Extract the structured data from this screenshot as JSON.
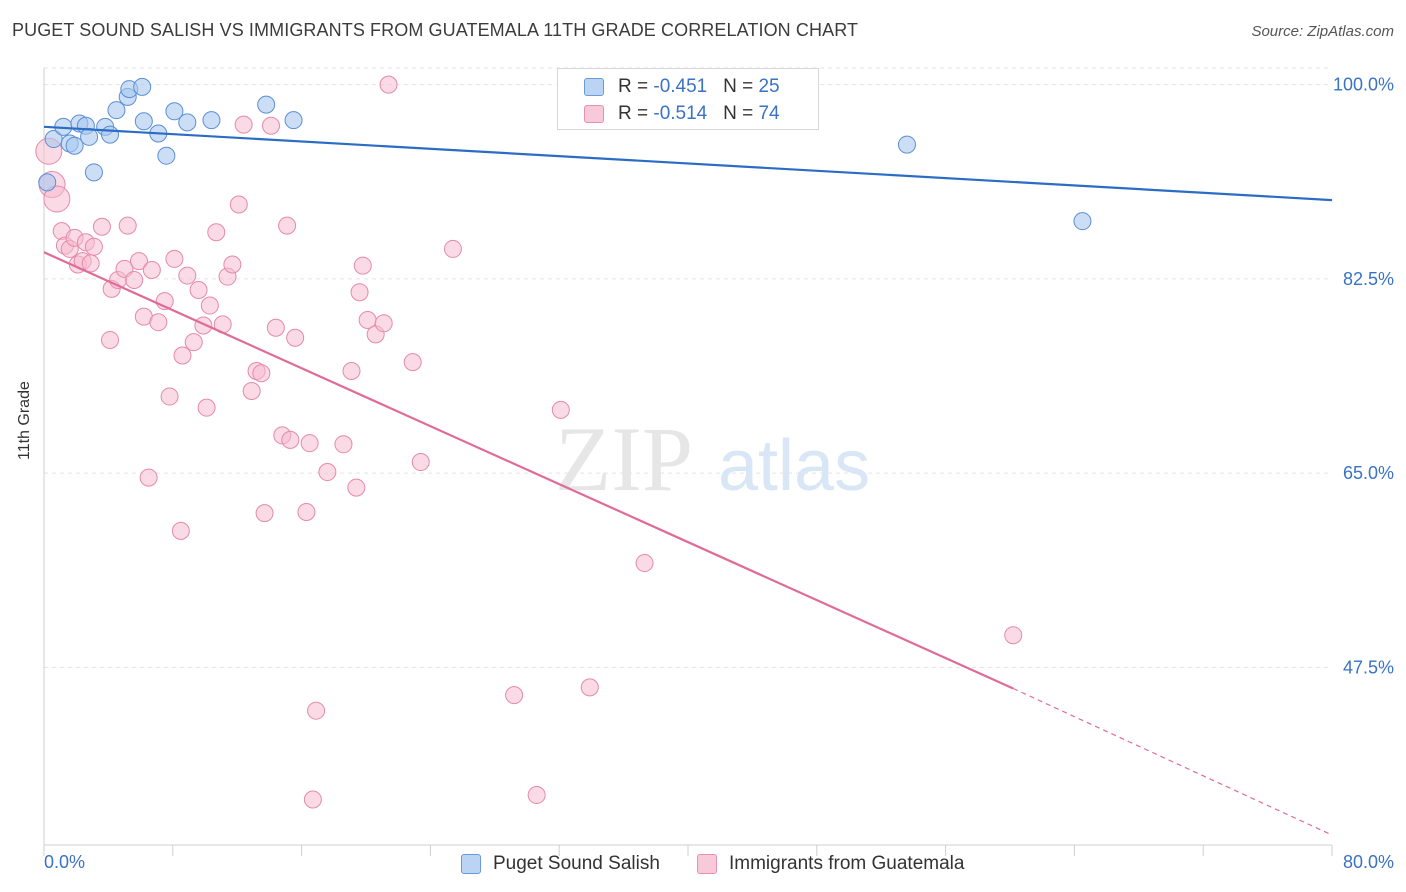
{
  "header": {
    "title": "PUGET SOUND SALISH VS IMMIGRANTS FROM GUATEMALA 11TH GRADE CORRELATION CHART",
    "source": "Source: ZipAtlas.com"
  },
  "watermark": {
    "part1": "ZIP",
    "part2": "atlas"
  },
  "legend": {
    "series1": {
      "r_label": "R = ",
      "r_value": "-0.451",
      "n_label": "N = ",
      "n_value": "25"
    },
    "series2": {
      "r_label": "R = ",
      "r_value": "-0.514",
      "n_label": "N = ",
      "n_value": "74"
    }
  },
  "colors": {
    "blue_fill": "#a9c8ef",
    "blue_stroke": "#5b8fd6",
    "blue_line": "#2b6cc4",
    "pink_fill": "#f6bcd0",
    "pink_stroke": "#e58aaa",
    "pink_line": "#e06b97",
    "tick_label": "#3a72c4"
  },
  "chart_data": {
    "type": "scatter",
    "title": "PUGET SOUND SALISH VS IMMIGRANTS FROM GUATEMALA 11TH GRADE CORRELATION CHART",
    "xlabel": "",
    "ylabel": "11th Grade",
    "xlim": [
      0,
      80
    ],
    "ylim": [
      31.5,
      101.5
    ],
    "x_tick_labels": [
      "0.0%",
      "80.0%"
    ],
    "y_ticks": [
      100,
      82.5,
      65,
      47.5
    ],
    "y_tick_labels": [
      "100.0%",
      "82.5%",
      "65.0%",
      "47.5%"
    ],
    "series": [
      {
        "name": "Puget Sound Salish",
        "r": -0.451,
        "n": 25,
        "trend": {
          "x0": 0,
          "y0": 96.2,
          "x1": 80,
          "y1": 89.6
        },
        "points": [
          [
            0.2,
            91.2
          ],
          [
            0.6,
            95.1
          ],
          [
            1.2,
            96.2
          ],
          [
            1.6,
            94.7
          ],
          [
            1.9,
            94.5
          ],
          [
            2.2,
            96.5
          ],
          [
            2.6,
            96.3
          ],
          [
            2.8,
            95.3
          ],
          [
            3.1,
            92.1
          ],
          [
            3.8,
            96.2
          ],
          [
            4.1,
            95.5
          ],
          [
            4.5,
            97.7
          ],
          [
            5.2,
            98.9
          ],
          [
            5.3,
            99.6
          ],
          [
            6.1,
            99.8
          ],
          [
            6.2,
            96.7
          ],
          [
            7.1,
            95.6
          ],
          [
            7.6,
            93.6
          ],
          [
            8.1,
            97.6
          ],
          [
            8.9,
            96.6
          ],
          [
            10.4,
            96.8
          ],
          [
            13.8,
            98.2
          ],
          [
            15.5,
            96.8
          ],
          [
            53.6,
            94.6
          ],
          [
            64.5,
            87.7
          ]
        ]
      },
      {
        "name": "Immigrants from Guatemala",
        "r": -0.514,
        "n": 74,
        "trend": {
          "x0": 0,
          "y0": 84.9,
          "x1": 60.2,
          "y1": 45.6,
          "dash_x1": 80,
          "dash_y1": 32.4
        },
        "points": [
          [
            0.3,
            94.0
          ],
          [
            0.5,
            91.0
          ],
          [
            0.8,
            89.7
          ],
          [
            1.1,
            86.8
          ],
          [
            1.3,
            85.5
          ],
          [
            1.6,
            85.2
          ],
          [
            1.9,
            86.2
          ],
          [
            2.1,
            83.8
          ],
          [
            2.4,
            84.1
          ],
          [
            2.6,
            85.8
          ],
          [
            2.9,
            83.9
          ],
          [
            3.1,
            85.4
          ],
          [
            3.6,
            87.2
          ],
          [
            4.1,
            77.0
          ],
          [
            4.2,
            81.6
          ],
          [
            4.6,
            82.4
          ],
          [
            5.0,
            83.4
          ],
          [
            5.2,
            87.3
          ],
          [
            5.6,
            82.4
          ],
          [
            5.9,
            84.1
          ],
          [
            6.2,
            79.1
          ],
          [
            6.5,
            64.6
          ],
          [
            6.7,
            83.3
          ],
          [
            7.1,
            78.6
          ],
          [
            7.5,
            80.5
          ],
          [
            7.8,
            71.9
          ],
          [
            8.1,
            84.3
          ],
          [
            8.5,
            59.8
          ],
          [
            8.6,
            75.6
          ],
          [
            8.9,
            82.8
          ],
          [
            9.3,
            76.8
          ],
          [
            9.6,
            81.5
          ],
          [
            9.9,
            78.3
          ],
          [
            10.1,
            70.9
          ],
          [
            10.3,
            80.1
          ],
          [
            10.7,
            86.7
          ],
          [
            11.1,
            78.4
          ],
          [
            11.4,
            82.7
          ],
          [
            11.7,
            83.8
          ],
          [
            12.1,
            89.2
          ],
          [
            12.4,
            96.4
          ],
          [
            12.9,
            72.4
          ],
          [
            13.2,
            74.2
          ],
          [
            13.5,
            74.0
          ],
          [
            13.7,
            61.4
          ],
          [
            14.1,
            96.3
          ],
          [
            14.4,
            78.1
          ],
          [
            14.8,
            68.4
          ],
          [
            15.1,
            87.3
          ],
          [
            15.3,
            68.0
          ],
          [
            15.6,
            77.2
          ],
          [
            16.3,
            61.5
          ],
          [
            16.5,
            67.7
          ],
          [
            16.7,
            35.6
          ],
          [
            16.9,
            43.6
          ],
          [
            17.6,
            65.1
          ],
          [
            18.6,
            67.6
          ],
          [
            19.1,
            74.2
          ],
          [
            19.4,
            63.7
          ],
          [
            19.6,
            81.3
          ],
          [
            19.8,
            83.7
          ],
          [
            20.1,
            78.8
          ],
          [
            20.6,
            77.5
          ],
          [
            21.1,
            78.5
          ],
          [
            21.4,
            100.0
          ],
          [
            22.9,
            75.0
          ],
          [
            23.4,
            66.0
          ],
          [
            25.4,
            85.2
          ],
          [
            29.2,
            45.0
          ],
          [
            30.6,
            36.0
          ],
          [
            32.1,
            70.7
          ],
          [
            33.9,
            45.7
          ],
          [
            37.3,
            56.9
          ],
          [
            60.2,
            50.4
          ]
        ]
      }
    ]
  },
  "bottom_legend": {
    "series1_label": "Puget Sound Salish",
    "series2_label": "Immigrants from Guatemala"
  }
}
